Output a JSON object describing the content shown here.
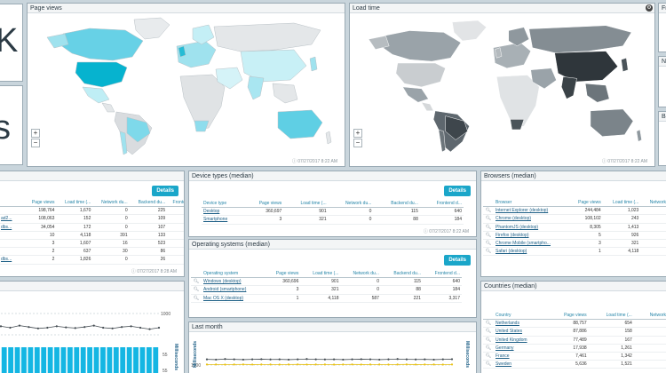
{
  "big_glyph_1": "K",
  "big_glyph_2": "s",
  "page_views": {
    "title": "Page views",
    "timestamp": "ⓘ 07/27/2017 8:22 AM"
  },
  "load_time": {
    "title": "Load time",
    "timestamp": "ⓘ 07/27/2017 8:22 AM",
    "gear": "⚙"
  },
  "zoom": {
    "plus": "+",
    "minus": "−"
  },
  "right_stub": {
    "t1": "Fr",
    "t2": "Ni",
    "t3": "Ba"
  },
  "left_table": {
    "details": "Details",
    "headers": [
      "Page views",
      "Load time (...",
      "Network du...",
      "Backend du...",
      "Fronte"
    ],
    "rows": [
      [
        "",
        "198,764",
        "1,670",
        "0",
        "225"
      ],
      [
        "ad2...",
        "108,063",
        "152",
        "0",
        "109"
      ],
      [
        "dbs...",
        "34,054",
        "172",
        "0",
        "107"
      ],
      [
        "",
        "10",
        "4,118",
        "391",
        "133"
      ],
      [
        "",
        "3",
        "1,607",
        "16",
        "523"
      ],
      [
        "",
        "2",
        "637",
        "30",
        "86"
      ],
      [
        "dbs...",
        "2",
        "1,826",
        "0",
        "26"
      ]
    ],
    "timestamp": "ⓘ 07/27/2017 8:28 AM"
  },
  "device_types": {
    "title": "Device types (median)",
    "details": "Details",
    "headers": [
      "Device type",
      "Page views",
      "Load time (...",
      "Network du...",
      "Backend du...",
      "Frontend d..."
    ],
    "rows": [
      [
        "Desktop",
        "360,697",
        "901",
        "0",
        "115",
        "640"
      ],
      [
        "Smartphone",
        "3",
        "321",
        "0",
        "88",
        "184"
      ]
    ],
    "timestamp": "ⓘ 07/27/2017 8:22 AM"
  },
  "operating_systems": {
    "title": "Operating systems (median)",
    "details": "Details",
    "headers": [
      "Operating system",
      "Page views",
      "Load time (...",
      "Network du...",
      "Backend du...",
      "Frontend d..."
    ],
    "rows": [
      [
        "Windows (desktop)",
        "360,696",
        "901",
        "0",
        "115",
        "640"
      ],
      [
        "Android (smartphone)",
        "3",
        "321",
        "0",
        "88",
        "184"
      ],
      [
        "Mac OS X (desktop)",
        "1",
        "4,118",
        "587",
        "221",
        "3,317"
      ]
    ]
  },
  "browsers": {
    "title": "Browsers (median)",
    "headers": [
      "Browser",
      "Page views",
      "Load time (...",
      "Network du"
    ],
    "rows": [
      [
        "Internet Explorer (desktop)",
        "244,484",
        "1,023",
        ""
      ],
      [
        "Chrome (desktop)",
        "108,102",
        "243",
        ""
      ],
      [
        "PhantomJS (desktop)",
        "8,305",
        "1,413",
        ""
      ],
      [
        "Firefox (desktop)",
        "5",
        "926",
        ""
      ],
      [
        "Chrome Mobile (smartpho...",
        "3",
        "321",
        ""
      ],
      [
        "Safari (desktop)",
        "1",
        "4,118",
        ""
      ]
    ]
  },
  "countries": {
    "title": "Countries (median)",
    "headers": [
      "Country",
      "Page views",
      "Load time (...",
      "Network du"
    ],
    "rows": [
      [
        "Netherlands",
        "88,757",
        "654",
        ""
      ],
      [
        "United States",
        "87,886",
        "158",
        ""
      ],
      [
        "United Kingdom",
        "77,489",
        "167",
        ""
      ],
      [
        "Germany",
        "17,938",
        "1,261",
        ""
      ],
      [
        "France",
        "7,461",
        "1,342",
        ""
      ],
      [
        "Sweden",
        "5,636",
        "1,521",
        ""
      ]
    ]
  },
  "last_month": {
    "title": "Last month",
    "axis_label": "Milliseconds",
    "tick": "1000"
  },
  "left_chart": {
    "axis_label": "Milliseconds",
    "tick_top": "1000",
    "tick_mid": "55",
    "tick_bot": "55"
  },
  "colors": {
    "accent": "#1aa6c9",
    "bar": "#14b6e3"
  },
  "chart_data": [
    {
      "type": "line",
      "title": "",
      "ylabel": "Milliseconds",
      "ylim": [
        0,
        1000
      ],
      "values": [
        820,
        800,
        830,
        810,
        790,
        800,
        820,
        805,
        795,
        810,
        830,
        800,
        790,
        810,
        820,
        800,
        780,
        800
      ]
    },
    {
      "type": "bar",
      "title": "",
      "ylabel": "",
      "values": [
        55,
        55,
        55,
        55,
        55,
        55,
        55,
        55,
        55,
        55,
        55,
        55,
        55,
        55,
        55,
        55,
        55,
        55,
        55,
        55,
        55,
        55,
        55,
        55
      ]
    },
    {
      "type": "line",
      "title": "Last month",
      "ylabel": "Milliseconds",
      "ylim": [
        0,
        1000
      ],
      "series": [
        {
          "name": "dark",
          "values": [
            700,
            690,
            710,
            700,
            690,
            700,
            705,
            695,
            700,
            690,
            700,
            710,
            700,
            695,
            700,
            690,
            700,
            705,
            700,
            690,
            700,
            710,
            700,
            695,
            700,
            690,
            700,
            705
          ]
        },
        {
          "name": "yellow",
          "values": [
            520,
            520,
            515,
            520,
            522,
            518,
            520,
            520,
            515,
            520,
            522,
            518,
            520,
            520,
            515,
            520,
            522,
            518,
            520,
            520,
            515,
            520,
            522,
            518,
            520,
            520,
            515,
            520
          ]
        }
      ]
    }
  ]
}
